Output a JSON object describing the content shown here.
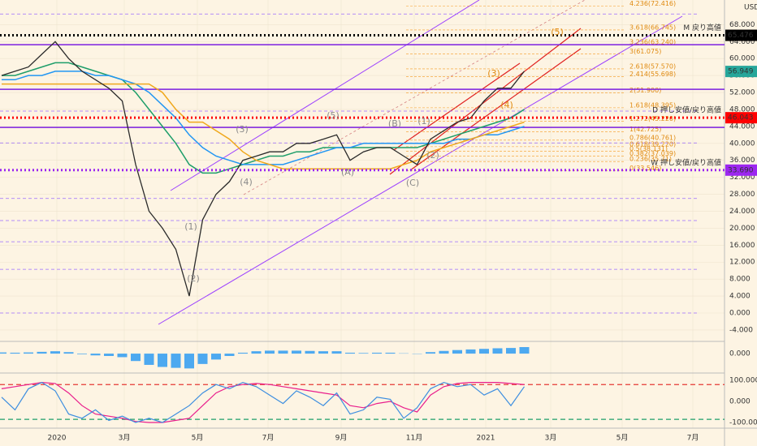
{
  "chart_data": {
    "type": "line",
    "axis_unit": "USD",
    "ylim": [
      -6.5,
      73.8
    ],
    "yticks": [
      {
        "value": -4,
        "label": "-4.000"
      },
      {
        "value": 0,
        "label": "0.000"
      },
      {
        "value": 4,
        "label": "4.000"
      },
      {
        "value": 8,
        "label": "8.000"
      },
      {
        "value": 12,
        "label": "12.000"
      },
      {
        "value": 16,
        "label": "16.000"
      },
      {
        "value": 20,
        "label": "20.000"
      },
      {
        "value": 24,
        "label": "24.000"
      },
      {
        "value": 28,
        "label": "28.000"
      },
      {
        "value": 32,
        "label": "32.000"
      },
      {
        "value": 36,
        "label": "36.000"
      },
      {
        "value": 40,
        "label": "40.000"
      },
      {
        "value": 44,
        "label": "44.000"
      },
      {
        "value": 48,
        "label": "48.000"
      },
      {
        "value": 52,
        "label": "52.000"
      },
      {
        "value": 56,
        "label": "56.000"
      },
      {
        "value": 60,
        "label": "60.000"
      },
      {
        "value": 64,
        "label": "64.000"
      },
      {
        "value": 68,
        "label": "68.000"
      }
    ],
    "categories": [
      "2020",
      "3月",
      "5月",
      "7月",
      "9月",
      "11月",
      "2021",
      "3月",
      "5月",
      "7月"
    ],
    "price": {
      "color": "#2b2b2b",
      "values": [
        56,
        57,
        58,
        61,
        64,
        60,
        57,
        55,
        53,
        50,
        35,
        24,
        20,
        15,
        4,
        22,
        28,
        31,
        36,
        37,
        38,
        38,
        40,
        40,
        41,
        42,
        36,
        38,
        39,
        39,
        37,
        35,
        41,
        43,
        45,
        46,
        50,
        53,
        53,
        57
      ]
    },
    "last_price": 56.949,
    "last_price_color": "#26a69a",
    "moving_averages": [
      {
        "color": "#1e9e6a",
        "values": [
          56,
          56,
          57,
          58,
          59,
          59,
          58,
          57,
          56,
          55,
          52,
          48,
          44,
          40,
          35,
          33,
          33,
          34,
          35,
          36,
          37,
          37,
          38,
          38,
          39,
          39,
          39,
          39,
          39,
          39,
          39,
          39,
          40,
          41,
          42,
          43,
          44,
          45,
          46,
          48
        ]
      },
      {
        "color": "#2196f3",
        "values": [
          55,
          55,
          56,
          56,
          57,
          57,
          57,
          56,
          56,
          55,
          54,
          52,
          49,
          46,
          42,
          39,
          37,
          36,
          35,
          35,
          35,
          35,
          36,
          37,
          38,
          39,
          39,
          40,
          40,
          40,
          40,
          40,
          40,
          40,
          41,
          41,
          42,
          42,
          43,
          44
        ]
      },
      {
        "color": "#f0a81c",
        "values": [
          54,
          54,
          54,
          54,
          54,
          54,
          54,
          54,
          54,
          54,
          54,
          54,
          52,
          48,
          45,
          45,
          43,
          41,
          38,
          36,
          35,
          34,
          34,
          34,
          34,
          34,
          34,
          34,
          34,
          34,
          35,
          36,
          38,
          39,
          40,
          41,
          42,
          43,
          44,
          45
        ]
      }
    ],
    "levels": [
      {
        "name": "M 戻り高値",
        "value": 65.476,
        "color": "#000000"
      },
      {
        "name": "D 押し安値/戻り高値",
        "value": 46.043,
        "color": "#ff0000"
      },
      {
        "name": "W 押し安値/戻り高値",
        "value": 33.69,
        "value_label": "33.690",
        "color": "#9c27f0"
      }
    ],
    "solid_levels": {
      "color": "#7b1fe0",
      "values": [
        63.25,
        52.74,
        43.76
      ]
    },
    "dashed_levels": {
      "color": "#9c6bff",
      "values": [
        70.5,
        47.6,
        40.1,
        27,
        21.8,
        16.8,
        10.3,
        0
      ]
    },
    "fib_levels": {
      "color": "#f59a23",
      "levels": [
        {
          "value": 72.416,
          "label": "4.236(72.416)"
        },
        {
          "value": 66.745,
          "label": "3.618(66.745)"
        },
        {
          "value": 63.24,
          "label": "3.236(63.240)"
        },
        {
          "value": 61.075,
          "label": "3(61.075)"
        },
        {
          "value": 57.57,
          "label": "2.618(57.570)"
        },
        {
          "value": 55.698,
          "label": "2.414(55.698)"
        },
        {
          "value": 51.9,
          "label": "2(51.900)"
        },
        {
          "value": 48.395,
          "label": "1.618(48.395)"
        },
        {
          "value": 45.22,
          "label": "1.272(45.220)"
        },
        {
          "value": 42.725,
          "label": "1(42.725)"
        },
        {
          "value": 40.761,
          "label": "0.786(40.761)"
        },
        {
          "value": 39.22,
          "label": "0.618(39.220)"
        },
        {
          "value": 38.131,
          "label": "0.5(38.131)"
        },
        {
          "value": 37.039,
          "label": "0.382(37.039)"
        },
        {
          "value": 35.71,
          "label": "0.236(35.71)"
        },
        {
          "value": 33.546,
          "label": "0(33.546)"
        }
      ]
    },
    "wave_labels": [
      "(1)",
      "(2)",
      "(3)",
      "(4)",
      "(5)",
      "(A)",
      "(B)",
      "(C)",
      "(1)",
      "(2)",
      "(3)",
      "(4)",
      "(5)"
    ],
    "macd": {
      "color": "#2196f3",
      "ylim": [
        -6,
        3.3
      ],
      "yticks": [
        {
          "value": 0,
          "label": "0.000"
        }
      ],
      "values": [
        0.4,
        0.3,
        0.4,
        0.6,
        0.8,
        0.5,
        -0.2,
        -0.6,
        -0.8,
        -1.2,
        -2.5,
        -3.8,
        -4.5,
        -4.8,
        -5,
        -3.5,
        -2,
        -0.8,
        0.3,
        0.8,
        1,
        1,
        1,
        0.9,
        0.8,
        0.8,
        0.3,
        0.2,
        0.3,
        0.3,
        0.1,
        -0.1,
        0.5,
        0.9,
        1.2,
        1.4,
        1.6,
        1.8,
        1.9,
        2.2
      ]
    },
    "oscillator": {
      "ylim": [
        -123,
        127
      ],
      "yticks": [
        {
          "value": 100,
          "label": "100.000"
        },
        {
          "value": 0,
          "label": "0.000"
        },
        {
          "value": -100,
          "label": "-100.000"
        }
      ],
      "bands": [
        {
          "value": 80,
          "color": "#e53935"
        },
        {
          "value": -85,
          "color": "#1e9e6a"
        }
      ],
      "series": [
        {
          "color": "#e91e8c",
          "values": [
            60,
            70,
            80,
            90,
            85,
            40,
            -20,
            -60,
            -70,
            -80,
            -95,
            -100,
            -100,
            -90,
            -80,
            -20,
            40,
            70,
            80,
            85,
            80,
            70,
            60,
            50,
            40,
            30,
            -20,
            -30,
            -10,
            0,
            -30,
            -50,
            30,
            70,
            85,
            90,
            90,
            90,
            85,
            80
          ]
        },
        {
          "color": "#3d8ee0",
          "values": [
            20,
            -40,
            60,
            90,
            50,
            -60,
            -80,
            -40,
            -90,
            -70,
            -100,
            -80,
            -100,
            -60,
            -20,
            40,
            80,
            60,
            90,
            70,
            30,
            -10,
            50,
            20,
            -20,
            40,
            -60,
            -40,
            20,
            10,
            -80,
            -30,
            60,
            90,
            70,
            80,
            30,
            60,
            -20,
            70
          ]
        }
      ]
    }
  }
}
